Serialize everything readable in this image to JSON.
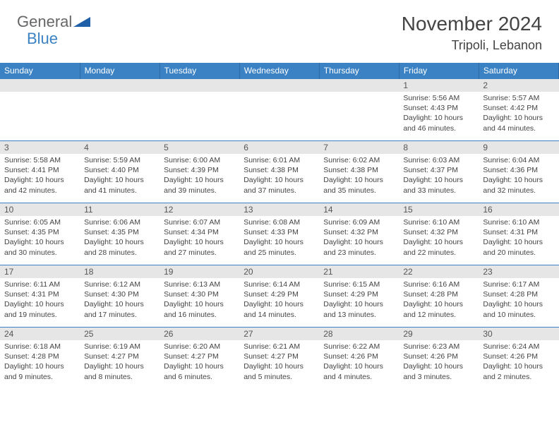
{
  "logo": {
    "text1": "General",
    "text2": "Blue",
    "text1_color": "#666666",
    "text2_color": "#3b82c4",
    "triangle_color": "#1f5fa8"
  },
  "header": {
    "title": "November 2024",
    "location": "Tripoli, Lebanon"
  },
  "colors": {
    "header_bg": "#3b82c4",
    "header_text": "#ffffff",
    "daynum_bg": "#e6e6e6",
    "daynum_text": "#555555",
    "cell_text": "#444444",
    "row_border": "#3b82c4"
  },
  "days_of_week": [
    "Sunday",
    "Monday",
    "Tuesday",
    "Wednesday",
    "Thursday",
    "Friday",
    "Saturday"
  ],
  "weeks": [
    [
      null,
      null,
      null,
      null,
      null,
      {
        "n": "1",
        "sunrise": "5:56 AM",
        "sunset": "4:43 PM",
        "daylight": "10 hours and 46 minutes."
      },
      {
        "n": "2",
        "sunrise": "5:57 AM",
        "sunset": "4:42 PM",
        "daylight": "10 hours and 44 minutes."
      }
    ],
    [
      {
        "n": "3",
        "sunrise": "5:58 AM",
        "sunset": "4:41 PM",
        "daylight": "10 hours and 42 minutes."
      },
      {
        "n": "4",
        "sunrise": "5:59 AM",
        "sunset": "4:40 PM",
        "daylight": "10 hours and 41 minutes."
      },
      {
        "n": "5",
        "sunrise": "6:00 AM",
        "sunset": "4:39 PM",
        "daylight": "10 hours and 39 minutes."
      },
      {
        "n": "6",
        "sunrise": "6:01 AM",
        "sunset": "4:38 PM",
        "daylight": "10 hours and 37 minutes."
      },
      {
        "n": "7",
        "sunrise": "6:02 AM",
        "sunset": "4:38 PM",
        "daylight": "10 hours and 35 minutes."
      },
      {
        "n": "8",
        "sunrise": "6:03 AM",
        "sunset": "4:37 PM",
        "daylight": "10 hours and 33 minutes."
      },
      {
        "n": "9",
        "sunrise": "6:04 AM",
        "sunset": "4:36 PM",
        "daylight": "10 hours and 32 minutes."
      }
    ],
    [
      {
        "n": "10",
        "sunrise": "6:05 AM",
        "sunset": "4:35 PM",
        "daylight": "10 hours and 30 minutes."
      },
      {
        "n": "11",
        "sunrise": "6:06 AM",
        "sunset": "4:35 PM",
        "daylight": "10 hours and 28 minutes."
      },
      {
        "n": "12",
        "sunrise": "6:07 AM",
        "sunset": "4:34 PM",
        "daylight": "10 hours and 27 minutes."
      },
      {
        "n": "13",
        "sunrise": "6:08 AM",
        "sunset": "4:33 PM",
        "daylight": "10 hours and 25 minutes."
      },
      {
        "n": "14",
        "sunrise": "6:09 AM",
        "sunset": "4:32 PM",
        "daylight": "10 hours and 23 minutes."
      },
      {
        "n": "15",
        "sunrise": "6:10 AM",
        "sunset": "4:32 PM",
        "daylight": "10 hours and 22 minutes."
      },
      {
        "n": "16",
        "sunrise": "6:10 AM",
        "sunset": "4:31 PM",
        "daylight": "10 hours and 20 minutes."
      }
    ],
    [
      {
        "n": "17",
        "sunrise": "6:11 AM",
        "sunset": "4:31 PM",
        "daylight": "10 hours and 19 minutes."
      },
      {
        "n": "18",
        "sunrise": "6:12 AM",
        "sunset": "4:30 PM",
        "daylight": "10 hours and 17 minutes."
      },
      {
        "n": "19",
        "sunrise": "6:13 AM",
        "sunset": "4:30 PM",
        "daylight": "10 hours and 16 minutes."
      },
      {
        "n": "20",
        "sunrise": "6:14 AM",
        "sunset": "4:29 PM",
        "daylight": "10 hours and 14 minutes."
      },
      {
        "n": "21",
        "sunrise": "6:15 AM",
        "sunset": "4:29 PM",
        "daylight": "10 hours and 13 minutes."
      },
      {
        "n": "22",
        "sunrise": "6:16 AM",
        "sunset": "4:28 PM",
        "daylight": "10 hours and 12 minutes."
      },
      {
        "n": "23",
        "sunrise": "6:17 AM",
        "sunset": "4:28 PM",
        "daylight": "10 hours and 10 minutes."
      }
    ],
    [
      {
        "n": "24",
        "sunrise": "6:18 AM",
        "sunset": "4:28 PM",
        "daylight": "10 hours and 9 minutes."
      },
      {
        "n": "25",
        "sunrise": "6:19 AM",
        "sunset": "4:27 PM",
        "daylight": "10 hours and 8 minutes."
      },
      {
        "n": "26",
        "sunrise": "6:20 AM",
        "sunset": "4:27 PM",
        "daylight": "10 hours and 6 minutes."
      },
      {
        "n": "27",
        "sunrise": "6:21 AM",
        "sunset": "4:27 PM",
        "daylight": "10 hours and 5 minutes."
      },
      {
        "n": "28",
        "sunrise": "6:22 AM",
        "sunset": "4:26 PM",
        "daylight": "10 hours and 4 minutes."
      },
      {
        "n": "29",
        "sunrise": "6:23 AM",
        "sunset": "4:26 PM",
        "daylight": "10 hours and 3 minutes."
      },
      {
        "n": "30",
        "sunrise": "6:24 AM",
        "sunset": "4:26 PM",
        "daylight": "10 hours and 2 minutes."
      }
    ]
  ],
  "labels": {
    "sunrise": "Sunrise:",
    "sunset": "Sunset:",
    "daylight": "Daylight:"
  }
}
